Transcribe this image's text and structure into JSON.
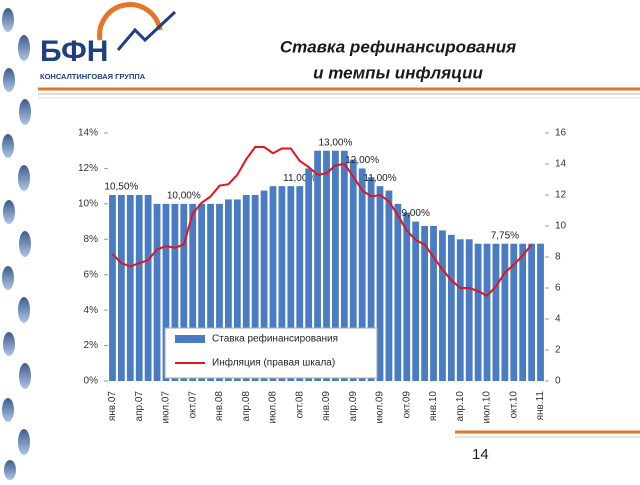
{
  "slide": {
    "title_lines": [
      "Ставка рефинансирования",
      "и темпы инфляции"
    ],
    "logo": {
      "text": "БФН",
      "tagline": "КОНСАЛТИНГОВАЯ ГРУППА"
    },
    "page_number": "14"
  },
  "chart_data": {
    "type": "bar-line",
    "categories": [
      "янв.07",
      null,
      null,
      "апр.07",
      null,
      null,
      "июл.07",
      null,
      null,
      "окт.07",
      null,
      null,
      "янв.08",
      null,
      null,
      "апр.08",
      null,
      null,
      "июл.08",
      null,
      null,
      "окт.08",
      null,
      null,
      "янв.09",
      null,
      null,
      "апр.09",
      null,
      null,
      "июл.09",
      null,
      null,
      "окт.09",
      null,
      null,
      "янв.10",
      null,
      null,
      "апр.10",
      null,
      null,
      "июл.10",
      null,
      null,
      "окт.10",
      null,
      null,
      "янв.11"
    ],
    "series": [
      {
        "name": "Ставка рефинансирования",
        "color": "#4a7cc4",
        "kind": "bar",
        "values": [
          10.5,
          10.5,
          10.5,
          10.5,
          10.5,
          10,
          10,
          10,
          10,
          10,
          10,
          10,
          10,
          10.25,
          10.25,
          10.5,
          10.5,
          10.75,
          11,
          11,
          11,
          11,
          12,
          13,
          13,
          13,
          13,
          12.5,
          12,
          11.5,
          11,
          10.75,
          10,
          9.5,
          9,
          8.75,
          8.75,
          8.5,
          8.25,
          8,
          8,
          7.75,
          7.75,
          7.75,
          7.75,
          7.75,
          7.75,
          7.75,
          7.75
        ],
        "value_labels": [
          null,
          "10,50%",
          null,
          null,
          null,
          null,
          null,
          null,
          "10,00%",
          null,
          null,
          null,
          null,
          null,
          null,
          null,
          null,
          null,
          null,
          null,
          null,
          "11,00%",
          null,
          null,
          null,
          "13,00%",
          null,
          null,
          "12,00%",
          null,
          "11,00%",
          null,
          null,
          null,
          "9,00%",
          null,
          null,
          null,
          null,
          null,
          null,
          null,
          null,
          null,
          "7,75%",
          null,
          null,
          null,
          null
        ]
      },
      {
        "name": "Инфляция (правая шкала)",
        "color": "#e3141b",
        "kind": "line",
        "axis": "y2",
        "values": [
          8.2,
          7.6,
          7.4,
          7.6,
          7.8,
          8.5,
          8.7,
          8.6,
          8.8,
          10.8,
          11.5,
          11.9,
          12.6,
          12.7,
          13.3,
          14.3,
          15.1,
          15.1,
          14.7,
          15.0,
          15.0,
          14.2,
          13.8,
          13.3,
          13.4,
          13.9,
          14.0,
          13.2,
          12.3,
          11.9,
          12.0,
          11.6,
          10.7,
          9.7,
          9.1,
          8.8,
          8.0,
          7.2,
          6.5,
          6.0,
          6.0,
          5.8,
          5.5,
          6.1,
          7.0,
          7.5,
          8.1,
          8.8,
          null
        ]
      }
    ],
    "ylim": [
      0,
      14
    ],
    "yticks": [
      {
        "value": 0,
        "label": "0%"
      },
      {
        "value": 2,
        "label": "2%"
      },
      {
        "value": 4,
        "label": "4%"
      },
      {
        "value": 6,
        "label": "6%"
      },
      {
        "value": 8,
        "label": "8%"
      },
      {
        "value": 10,
        "label": "10%"
      },
      {
        "value": 12,
        "label": "12%"
      },
      {
        "value": 14,
        "label": "14%"
      }
    ],
    "y2lim": [
      0,
      16
    ],
    "y2ticks": [
      0,
      2,
      4,
      6,
      8,
      10,
      12,
      14,
      16
    ],
    "grid": false
  }
}
